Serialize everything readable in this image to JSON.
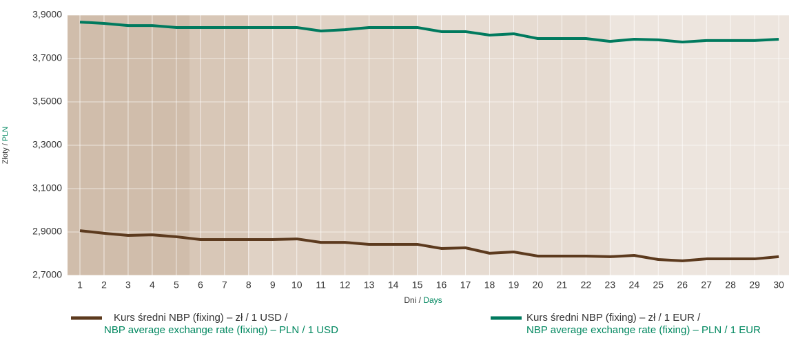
{
  "chart_data": {
    "type": "line",
    "y_label": {
      "pl": "Złoty / ",
      "en": "PLN"
    },
    "x_label": {
      "pl": "Dni / ",
      "en": "Days"
    },
    "categories": [
      1,
      2,
      3,
      4,
      5,
      6,
      7,
      8,
      9,
      10,
      11,
      12,
      13,
      14,
      15,
      16,
      17,
      18,
      19,
      20,
      21,
      22,
      23,
      24,
      25,
      26,
      27,
      28,
      29,
      30
    ],
    "series": [
      {
        "name": "Kurs średni NBP (fixing) – zł / 1 USD /",
        "name_en": "NBP average exchange rate (fixing) – PLN / 1 USD",
        "color": "#5c3a1e",
        "values": [
          2.906,
          2.894,
          2.884,
          2.887,
          2.878,
          2.865,
          2.865,
          2.865,
          2.865,
          2.868,
          2.852,
          2.852,
          2.843,
          2.843,
          2.843,
          2.824,
          2.827,
          2.802,
          2.808,
          2.789,
          2.789,
          2.789,
          2.786,
          2.792,
          2.773,
          2.767,
          2.776,
          2.776,
          2.776,
          2.786
        ]
      },
      {
        "name": "Kurs średni NBP (fixing) – zł / 1 EUR /",
        "name_en": "NBP average exchange rate (fixing) – PLN / 1 EUR",
        "color": "#007a5e",
        "values": [
          3.868,
          3.862,
          3.852,
          3.852,
          3.843,
          3.843,
          3.843,
          3.843,
          3.843,
          3.843,
          3.827,
          3.833,
          3.843,
          3.843,
          3.843,
          3.824,
          3.824,
          3.808,
          3.814,
          3.792,
          3.792,
          3.792,
          3.779,
          3.789,
          3.786,
          3.776,
          3.783,
          3.783,
          3.783,
          3.789
        ]
      }
    ],
    "ylim": [
      2.7,
      3.9
    ],
    "yticks": [
      {
        "value": 2.7,
        "label": "2,7000"
      },
      {
        "value": 2.9,
        "label": "2,9000"
      },
      {
        "value": 3.1,
        "label": "3,1000"
      },
      {
        "value": 3.3,
        "label": "3,3000"
      },
      {
        "value": 3.5,
        "label": "3,5000"
      },
      {
        "value": 3.7,
        "label": "3,7000"
      },
      {
        "value": 3.9,
        "label": "3,9000"
      }
    ],
    "grid": true
  }
}
